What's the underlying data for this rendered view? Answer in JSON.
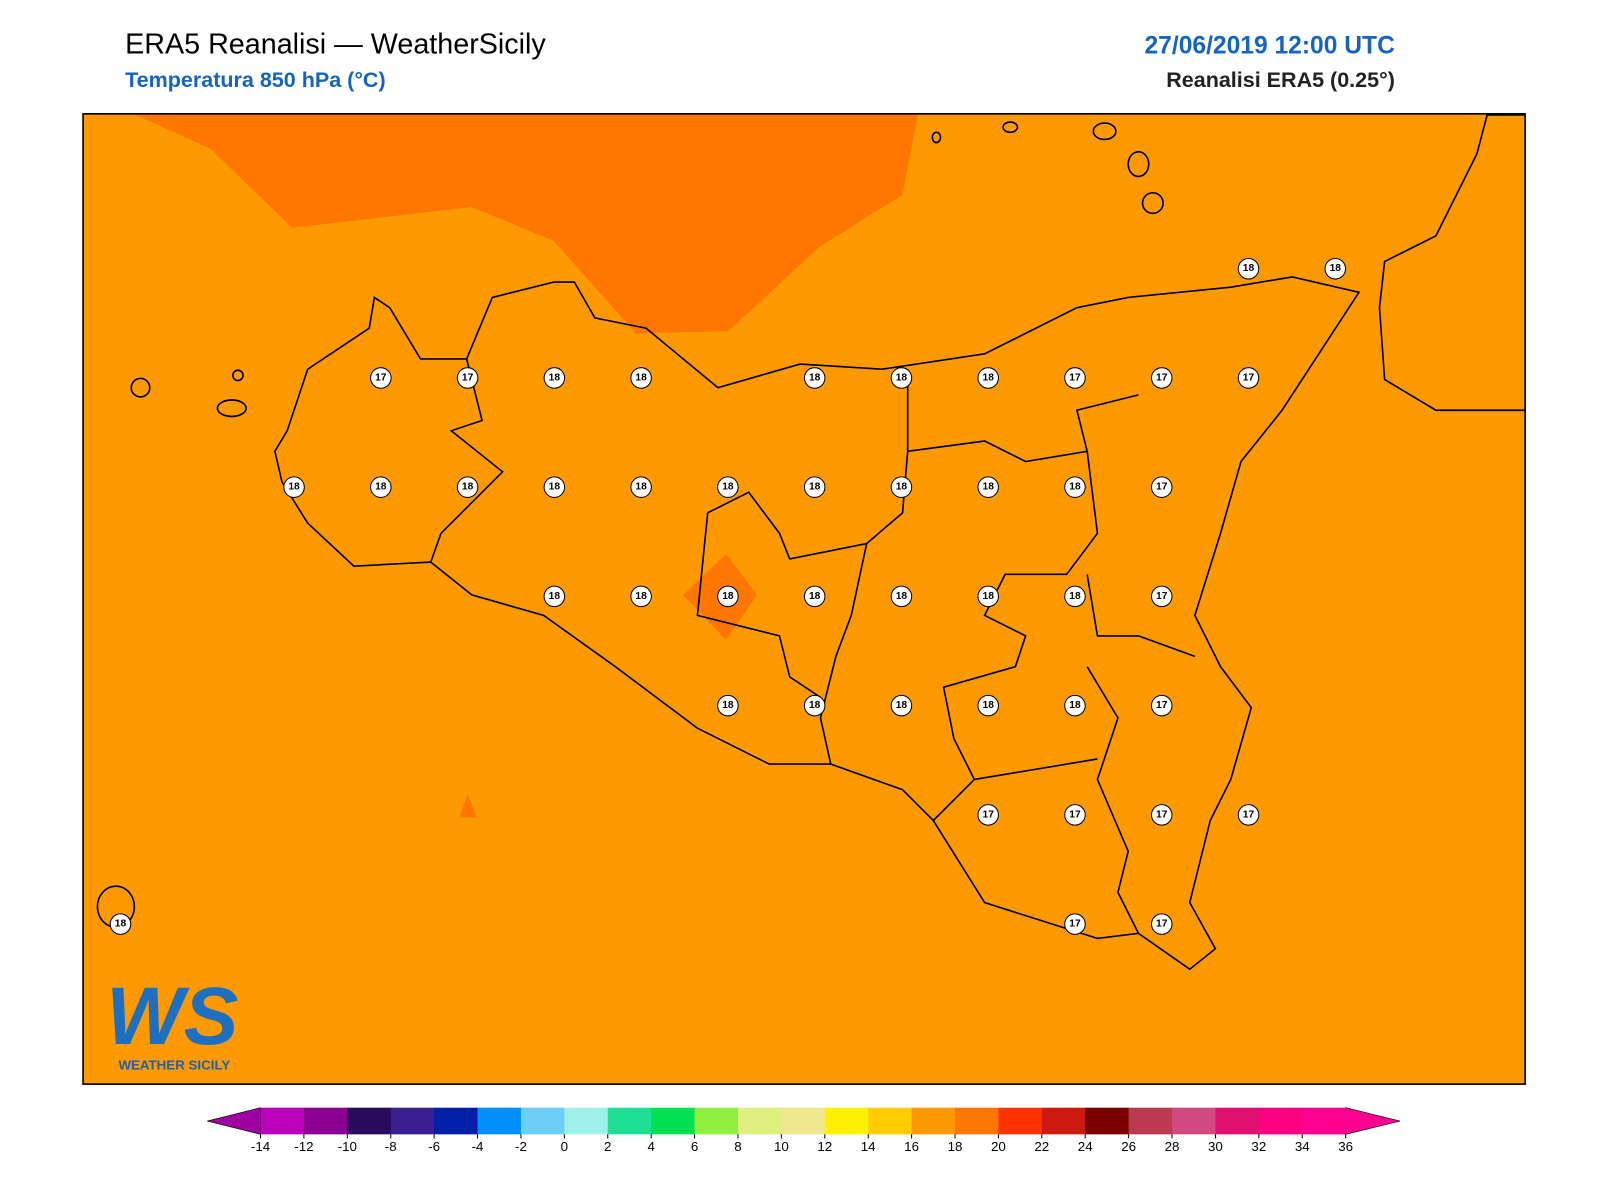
{
  "header": {
    "title": "ERA5 Reanalisi — WeatherSicily",
    "subtitle": "Temperatura 850 hPa (°C)",
    "datetime": "27/06/2019 12:00 UTC",
    "source": "Reanalisi ERA5 (0.25°)"
  },
  "temperature_grid": {
    "rows": [
      [
        null,
        null,
        null,
        null,
        null,
        null,
        null,
        null,
        null,
        null,
        null,
        null,
        null,
        18,
        18
      ],
      [
        null,
        null,
        null,
        17,
        17,
        18,
        18,
        null,
        18,
        18,
        18,
        17,
        17,
        17,
        null
      ],
      [
        null,
        null,
        18,
        18,
        18,
        18,
        18,
        18,
        18,
        18,
        18,
        18,
        17,
        null,
        null
      ],
      [
        null,
        null,
        null,
        null,
        null,
        18,
        18,
        18,
        18,
        18,
        18,
        18,
        17,
        null,
        null
      ],
      [
        null,
        null,
        null,
        null,
        null,
        null,
        null,
        18,
        18,
        18,
        18,
        18,
        17,
        null,
        null
      ],
      [
        null,
        null,
        null,
        null,
        null,
        null,
        null,
        null,
        null,
        null,
        17,
        17,
        17,
        17,
        null
      ],
      [
        18,
        null,
        null,
        null,
        null,
        null,
        null,
        null,
        null,
        null,
        null,
        17,
        17,
        null,
        null
      ]
    ]
  },
  "colorbar": {
    "ticks": [
      -14,
      -12,
      -10,
      -8,
      -6,
      -4,
      -2,
      0,
      2,
      4,
      6,
      8,
      10,
      12,
      14,
      16,
      18,
      20,
      22,
      24,
      26,
      28,
      30,
      32,
      34,
      36
    ],
    "colors": [
      "#bb00bb",
      "#8a0090",
      "#2a0a5a",
      "#3a2090",
      "#0020a8",
      "#0090ff",
      "#6ecff6",
      "#9ef0e8",
      "#1ee094",
      "#00e050",
      "#90f040",
      "#e0f080",
      "#f0e890",
      "#fff000",
      "#ffcc00",
      "#ff9900",
      "#ff7700",
      "#ff3300",
      "#cc1a10",
      "#7a0000",
      "#bb3a50",
      "#d04a80",
      "#e01070",
      "#ff0080",
      "#ff0090"
    ],
    "under_color": "#a000a0",
    "over_color": "#ff0090"
  },
  "logo": {
    "mark": "WS",
    "text": "WEATHER SICILY"
  }
}
